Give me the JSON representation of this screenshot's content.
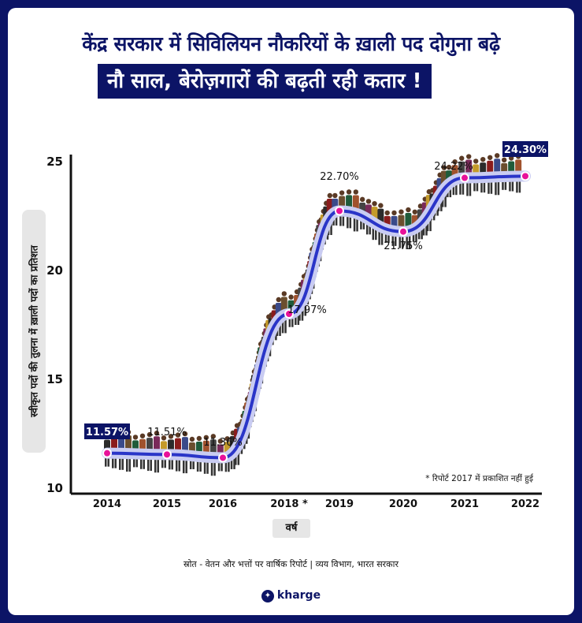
{
  "header": {
    "title": "केंद्र सरकार में सिविलियन नौकरियों के ख़ाली पद दोगुना बढ़े",
    "subtitle": "नौ साल, बेरोज़गारों की बढ़ती रही कतार !"
  },
  "footnote": "* रिपोर्ट 2017 में प्रकाशित नहीं हुई",
  "source": "स्रोत - वेतन और भत्तों पर वार्षिक रिपोर्ट | व्यय विभाग, भारत सरकार",
  "brand": {
    "handle": "kharge",
    "icon": "twitter-bird-icon"
  },
  "colors": {
    "navy": "#0c1466",
    "line": "#2a35c8",
    "marker": "#e8119a",
    "background": "#ffffff"
  },
  "chart_data": {
    "type": "line",
    "title": "",
    "xlabel": "वर्ष",
    "ylabel": "स्वीकृत पदों की तुलना में ख़ाली पदों का प्रतिशत",
    "ylim": [
      10,
      25
    ],
    "yticks": [
      "10",
      "15",
      "20",
      "25"
    ],
    "categories": [
      "2014",
      "2015",
      "2016",
      "2018 *",
      "2019",
      "2020",
      "2021",
      "2022"
    ],
    "x": [
      2014,
      2015,
      2016,
      2018,
      2019,
      2020,
      2021,
      2022
    ],
    "values": [
      11.57,
      11.51,
      11.36,
      17.97,
      22.7,
      21.75,
      24.22,
      24.3
    ],
    "data_labels": [
      "11.57%",
      "11.51%",
      "11.36%",
      "17.97%",
      "22.70%",
      "21.75%",
      "24.22%",
      "24.30%"
    ],
    "highlighted_labels": [
      0,
      7
    ],
    "grid": false,
    "legend": "none"
  }
}
